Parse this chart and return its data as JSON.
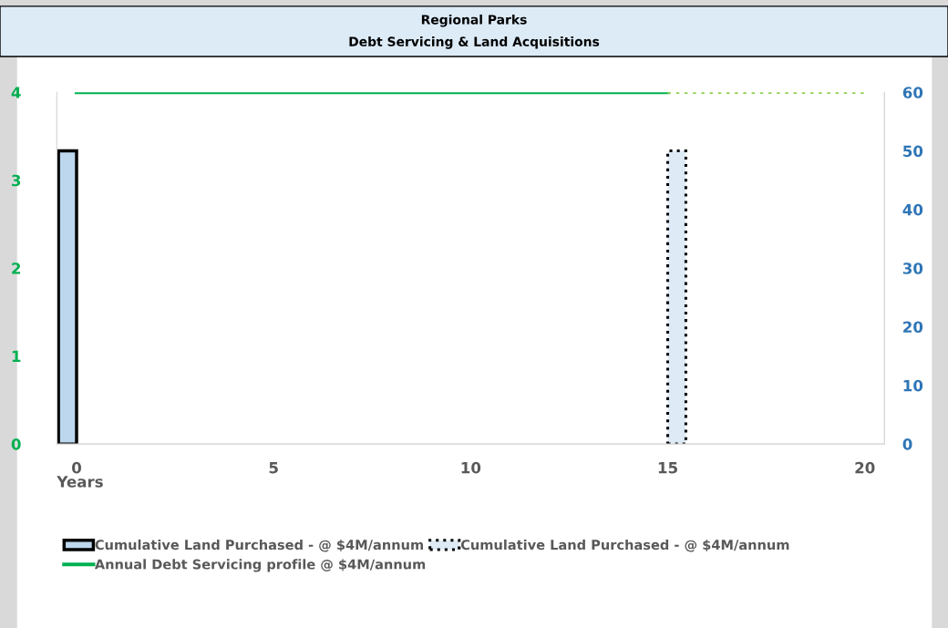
{
  "chart_data": {
    "type": "bar",
    "title": "Regional Parks",
    "subtitle": "Debt Servicing & Land Acquisitions",
    "xlabel": "Years",
    "x": [
      0,
      15
    ],
    "series": [
      {
        "name": "Cumulative Land Purchased - @ $4M/annum",
        "axis": "y2",
        "color": "#bdd7ee",
        "line_style": "solid",
        "values": [
          50,
          null
        ]
      },
      {
        "name": "Cumulative Land Purchased - @ $4M/annum",
        "axis": "y2",
        "color": "#deebf7",
        "line_style": "dotted",
        "values": [
          null,
          50
        ]
      },
      {
        "name": "Annual Debt Servicing profile @ $4M/annum",
        "type": "line",
        "color": "#00b050",
        "line_style": "solid",
        "x": [
          0,
          15
        ],
        "values": [
          4,
          4
        ]
      },
      {
        "type": "line",
        "color": "#92d050",
        "line_style": "dotted",
        "x": [
          15,
          20
        ],
        "values": [
          4,
          4
        ]
      }
    ],
    "xlim": [
      -0.5,
      20.5
    ],
    "xticks": [
      0,
      5,
      10,
      15,
      20
    ],
    "ylim": [
      0,
      4
    ],
    "yticks": [
      0,
      1,
      2,
      3,
      4
    ],
    "y2lim": [
      0,
      60
    ],
    "y2ticks": [
      0,
      10,
      20,
      30,
      40,
      50,
      60
    ],
    "grid": false,
    "legend": "bottom",
    "marker": "none"
  }
}
